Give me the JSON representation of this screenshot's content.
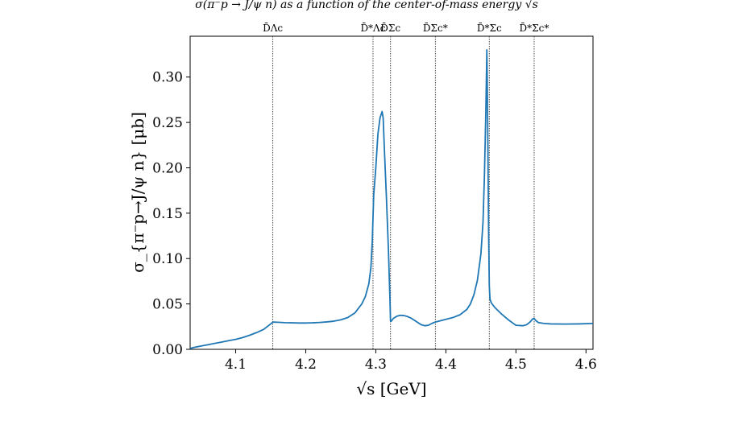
{
  "page_caption": "σ(π⁻p → J/ψ n) as a function of the center-of-mass energy √s",
  "chart_data": {
    "type": "line",
    "title": "",
    "xlabel": "√s [GeV]",
    "ylabel": "σ_{π⁻p→J/ψ n} [μb]",
    "xlim": [
      4.035,
      4.61
    ],
    "ylim": [
      0.0,
      0.345
    ],
    "xticks": [
      4.1,
      4.2,
      4.3,
      4.4,
      4.5,
      4.6
    ],
    "xtick_labels": [
      "4.1",
      "4.2",
      "4.3",
      "4.4",
      "4.5",
      "4.6"
    ],
    "yticks": [
      0.0,
      0.05,
      0.1,
      0.15,
      0.2,
      0.25,
      0.3
    ],
    "ytick_labels": [
      "0.00",
      "0.05",
      "0.10",
      "0.15",
      "0.20",
      "0.25",
      "0.30"
    ],
    "grid": false,
    "line_color": "#1f77b4",
    "threshold_color": "#333333",
    "thresholds": [
      {
        "label": "D̄Λc",
        "x": 4.153
      },
      {
        "label": "D̄*Λc",
        "x": 4.296
      },
      {
        "label": "D̄Σc",
        "x": 4.321
      },
      {
        "label": "D̄Σc*",
        "x": 4.385
      },
      {
        "label": "D̄*Σc",
        "x": 4.462
      },
      {
        "label": "D̄*Σc*",
        "x": 4.526
      }
    ],
    "series": [
      {
        "name": "",
        "x": [
          4.035,
          4.04,
          4.05,
          4.06,
          4.07,
          4.08,
          4.09,
          4.1,
          4.11,
          4.12,
          4.13,
          4.14,
          4.145,
          4.15,
          4.153,
          4.155,
          4.16,
          4.17,
          4.18,
          4.19,
          4.2,
          4.21,
          4.22,
          4.23,
          4.24,
          4.25,
          4.26,
          4.27,
          4.28,
          4.285,
          4.29,
          4.293,
          4.295,
          4.297,
          4.3,
          4.303,
          4.306,
          4.309,
          4.3105,
          4.312,
          4.315,
          4.318,
          4.32,
          4.321,
          4.322,
          4.325,
          4.33,
          4.335,
          4.34,
          4.345,
          4.35,
          4.355,
          4.36,
          4.365,
          4.37,
          4.375,
          4.38,
          4.383,
          4.385,
          4.39,
          4.4,
          4.41,
          4.42,
          4.43,
          4.435,
          4.44,
          4.445,
          4.45,
          4.453,
          4.455,
          4.457,
          4.4585,
          4.459,
          4.46,
          4.461,
          4.462,
          4.463,
          4.465,
          4.47,
          4.48,
          4.49,
          4.5,
          4.51,
          4.515,
          4.52,
          4.524,
          4.526,
          4.528,
          4.532,
          4.54,
          4.55,
          4.57,
          4.59,
          4.61
        ],
        "values": [
          0.001,
          0.002,
          0.0035,
          0.005,
          0.0065,
          0.008,
          0.0095,
          0.011,
          0.013,
          0.0155,
          0.0185,
          0.022,
          0.025,
          0.028,
          0.03,
          0.03,
          0.0298,
          0.0294,
          0.0292,
          0.029,
          0.029,
          0.0292,
          0.0296,
          0.0302,
          0.031,
          0.0325,
          0.035,
          0.04,
          0.05,
          0.058,
          0.072,
          0.09,
          0.12,
          0.17,
          0.2,
          0.237,
          0.255,
          0.262,
          0.255,
          0.225,
          0.17,
          0.11,
          0.06,
          0.031,
          0.031,
          0.034,
          0.0365,
          0.0375,
          0.0372,
          0.0362,
          0.0345,
          0.032,
          0.0295,
          0.027,
          0.026,
          0.0265,
          0.0285,
          0.0295,
          0.03,
          0.031,
          0.033,
          0.035,
          0.038,
          0.044,
          0.05,
          0.06,
          0.076,
          0.105,
          0.14,
          0.19,
          0.26,
          0.33,
          0.3,
          0.22,
          0.13,
          0.07,
          0.055,
          0.051,
          0.046,
          0.0385,
          0.032,
          0.0265,
          0.026,
          0.027,
          0.03,
          0.0335,
          0.034,
          0.032,
          0.0295,
          0.0285,
          0.028,
          0.0278,
          0.028,
          0.0285
        ]
      }
    ]
  }
}
